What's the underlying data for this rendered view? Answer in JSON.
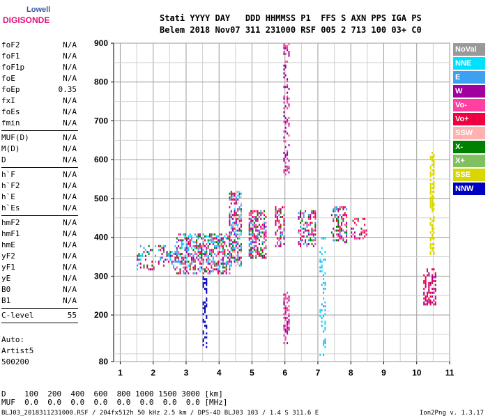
{
  "logo": {
    "line1": "Lowell",
    "line2": "DIGISONDE"
  },
  "header": {
    "labels_line": "Stati YYYY DAY   DDD HHMMSS P1  FFS S AXN PPS IGA PS",
    "values_line": "Belem 2018 Nov07 311 231000 RSF 005 2 713 100 03+ C0"
  },
  "params": {
    "group1": [
      {
        "name": "foF2",
        "value": "N/A"
      },
      {
        "name": "foF1",
        "value": "N/A"
      },
      {
        "name": "foF1p",
        "value": "N/A"
      },
      {
        "name": "foE",
        "value": "N/A"
      },
      {
        "name": "foEp",
        "value": "0.35"
      },
      {
        "name": "fxI",
        "value": "N/A"
      },
      {
        "name": "foEs",
        "value": "N/A"
      },
      {
        "name": "fmin",
        "value": "N/A"
      }
    ],
    "group2": [
      {
        "name": "MUF(D)",
        "value": "N/A"
      },
      {
        "name": "M(D)",
        "value": "N/A"
      },
      {
        "name": "D",
        "value": "N/A"
      }
    ],
    "group3": [
      {
        "name": "h`F",
        "value": "N/A"
      },
      {
        "name": "h`F2",
        "value": "N/A"
      },
      {
        "name": "h`E",
        "value": "N/A"
      },
      {
        "name": "h`Es",
        "value": "N/A"
      }
    ],
    "group4": [
      {
        "name": "hmF2",
        "value": "N/A"
      },
      {
        "name": "hmF1",
        "value": "N/A"
      },
      {
        "name": "hmE",
        "value": "N/A"
      },
      {
        "name": "yF2",
        "value": "N/A"
      },
      {
        "name": "yF1",
        "value": "N/A"
      },
      {
        "name": "yE",
        "value": "N/A"
      },
      {
        "name": "B0",
        "value": "N/A"
      },
      {
        "name": "B1",
        "value": "N/A"
      }
    ],
    "group5": [
      {
        "name": "C-level",
        "value": "55"
      }
    ]
  },
  "auto": {
    "line1": "Auto:",
    "line2": "Artist5",
    "line3": "500200"
  },
  "distance_table": {
    "d_line": "D    100  200  400  600  800 1000 1500 3000 [km]",
    "muf_line": "MUF  0.0  0.0  0.0  0.0  0.0  0.0  0.0  0.0 [MHz]"
  },
  "footer": {
    "info": "BLJ03_2018311231000.RSF / 204fx512h 50 kHz 2.5 km / DPS-4D BLJ03 103 / 1.4 S 311.6 E",
    "version": "Ion2Png v. 1.3.17"
  },
  "legend": [
    {
      "label": "NoVal",
      "color": "#999999"
    },
    {
      "label": "NNE",
      "color": "#00e0ff"
    },
    {
      "label": "E",
      "color": "#3ea0f0"
    },
    {
      "label": "W",
      "color": "#a000a0"
    },
    {
      "label": "Vo-",
      "color": "#ff40a0"
    },
    {
      "label": "Vo+",
      "color": "#f00040"
    },
    {
      "label": "SSW",
      "color": "#ffb0b0"
    },
    {
      "label": "X-",
      "color": "#008000"
    },
    {
      "label": "X+",
      "color": "#80c060"
    },
    {
      "label": "SSE",
      "color": "#d8d800"
    },
    {
      "label": "NNW",
      "color": "#0000c0"
    }
  ],
  "chart_data": {
    "type": "scatter",
    "title": "",
    "xlabel": "",
    "ylabel": "",
    "xlim": [
      0.8,
      11
    ],
    "ylim": [
      80,
      900
    ],
    "x_ticks": [
      "1",
      "2",
      "3",
      "4",
      "5",
      "6",
      "7",
      "8",
      "9",
      "10",
      "11"
    ],
    "y_ticks": [
      "80",
      "200",
      "300",
      "400",
      "500",
      "600",
      "700",
      "800",
      "900"
    ],
    "y_tick_values": [
      80,
      200,
      300,
      400,
      500,
      600,
      700,
      800,
      900
    ],
    "grid": true,
    "x_grid_minor": [
      1.5,
      2.5,
      3.5,
      4.5,
      5.5,
      6.5,
      7.5,
      8.5,
      9.5,
      10.5
    ],
    "y_grid_minor": [
      100,
      150,
      250,
      350,
      450,
      550,
      650,
      750,
      850
    ],
    "clusters": [
      {
        "x": [
          2.7,
          4.3
        ],
        "y": [
          310,
          410
        ],
        "series": [
          "W",
          "E",
          "Vo+",
          "Vo-",
          "X-",
          "NNE"
        ],
        "density": 0.55
      },
      {
        "x": [
          4.3,
          4.65
        ],
        "y": [
          330,
          520
        ],
        "series": [
          "E",
          "W",
          "Vo+",
          "NNE",
          "X-",
          "SSW"
        ],
        "density": 0.6
      },
      {
        "x": [
          4.9,
          5.4
        ],
        "y": [
          350,
          470
        ],
        "series": [
          "Vo+",
          "E",
          "W",
          "Vo-",
          "X-"
        ],
        "density": 0.6
      },
      {
        "x": [
          5.7,
          5.95
        ],
        "y": [
          380,
          480
        ],
        "series": [
          "Vo+",
          "E",
          "W",
          "X-",
          "Vo-"
        ],
        "density": 0.5
      },
      {
        "x": [
          6.4,
          6.9
        ],
        "y": [
          380,
          470
        ],
        "series": [
          "Vo+",
          "W",
          "E",
          "Vo-",
          "X-"
        ],
        "density": 0.45
      },
      {
        "x": [
          7.4,
          7.85
        ],
        "y": [
          390,
          480
        ],
        "series": [
          "Vo+",
          "W",
          "X-",
          "E",
          "Vo-"
        ],
        "density": 0.4
      },
      {
        "x": [
          8.0,
          8.5
        ],
        "y": [
          400,
          450
        ],
        "series": [
          "Vo+",
          "W",
          "X-",
          "Vo-"
        ],
        "density": 0.35
      },
      {
        "x": [
          1.5,
          2.7
        ],
        "y": [
          320,
          380
        ],
        "series": [
          "W",
          "E",
          "Vo+",
          "X-",
          "NNE"
        ],
        "density": 0.3
      },
      {
        "x": [
          5.95,
          6.1
        ],
        "y": [
          560,
          900
        ],
        "series": [
          "W",
          "Vo-"
        ],
        "density": 0.35
      },
      {
        "x": [
          5.95,
          6.1
        ],
        "y": [
          130,
          260
        ],
        "series": [
          "W",
          "Vo-"
        ],
        "density": 0.45
      },
      {
        "x": [
          7.05,
          7.2
        ],
        "y": [
          100,
          400
        ],
        "series": [
          "E",
          "NNE"
        ],
        "density": 0.25
      },
      {
        "x": [
          10.4,
          10.55
        ],
        "y": [
          360,
          620
        ],
        "series": [
          "SSE"
        ],
        "density": 0.55
      },
      {
        "x": [
          10.2,
          10.6
        ],
        "y": [
          230,
          320
        ],
        "series": [
          "Vo+",
          "W"
        ],
        "density": 0.5
      },
      {
        "x": [
          3.5,
          3.6
        ],
        "y": [
          120,
          300
        ],
        "series": [
          "NNW"
        ],
        "density": 0.5
      }
    ]
  }
}
